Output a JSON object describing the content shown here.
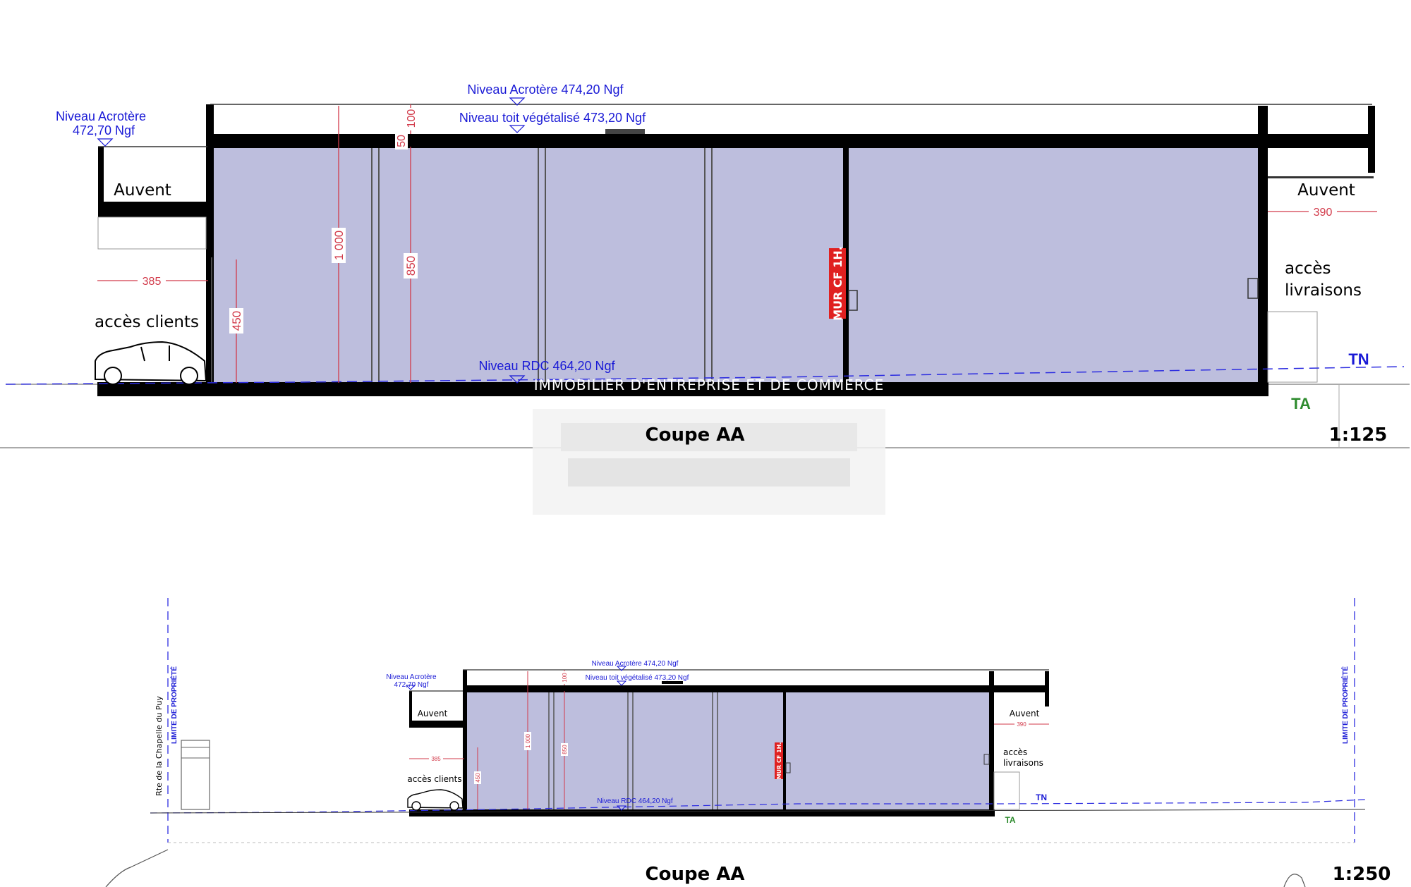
{
  "colors": {
    "room_fill": "#bdbedd",
    "structure": "#000000",
    "level_text": "#1a1ad6",
    "dimension": "#d23a4a",
    "wall_label_bg": "#e02020",
    "tn": "#1a1ad6",
    "ta": "#2e8b2e"
  },
  "large": {
    "niveau_acrotere_main": "Niveau Acrotère 474,20 Ngf",
    "niveau_toit": "Niveau toit végétalisé  473,20 Ngf",
    "niveau_acrotere_left_1": "Niveau Acrotère",
    "niveau_acrotere_left_2": "472,70 Ngf",
    "niveau_rdc": "Niveau RDC 464,20 Ngf",
    "auvent_left": "Auvent",
    "auvent_right": "Auvent",
    "acces_clients": "accès clients",
    "acces_livraisons_1": "accès",
    "acces_livraisons_2": "livraisons",
    "wall_label": "MUR CF 1H.",
    "tn": "TN",
    "ta": "TA",
    "dims": {
      "d385": "385",
      "d390": "390",
      "d1000": "1 000",
      "d450": "450",
      "d850": "850",
      "d50": "50",
      "d100": "100"
    },
    "title": "Coupe AA",
    "scale": "1:125"
  },
  "watermark": "IMMOBILIER D'ENTREPRISE ET DE COMMERCE",
  "small": {
    "niveau_acrotere_main": "Niveau Acrotère 474,20 Ngf",
    "niveau_toit": "Niveau toit végétalisé  473,20 Ngf",
    "niveau_acrotere_left_1": "Niveau Acrotère",
    "niveau_acrotere_left_2": "472,70 Ngf",
    "niveau_rdc": "Niveau RDC 464,20 Ngf",
    "auvent_left": "Auvent",
    "auvent_right": "Auvent",
    "acces_clients": "accès clients",
    "acces_livraisons_1": "accès",
    "acces_livraisons_2": "livraisons",
    "wall_label": "MUR CF 1H.",
    "tn": "TN",
    "ta": "TA",
    "dims": {
      "d385": "385",
      "d390": "390",
      "d1000": "1 000",
      "d450": "450",
      "d850": "850",
      "d100": "100"
    },
    "limite_left": "LIMITE DE PROPRIÉTÉ",
    "limite_right": "LIMITE DE PROPRIÉTÉ",
    "road": "Rte de la Chapelle du Puy",
    "title": "Coupe AA",
    "scale": "1:250"
  }
}
